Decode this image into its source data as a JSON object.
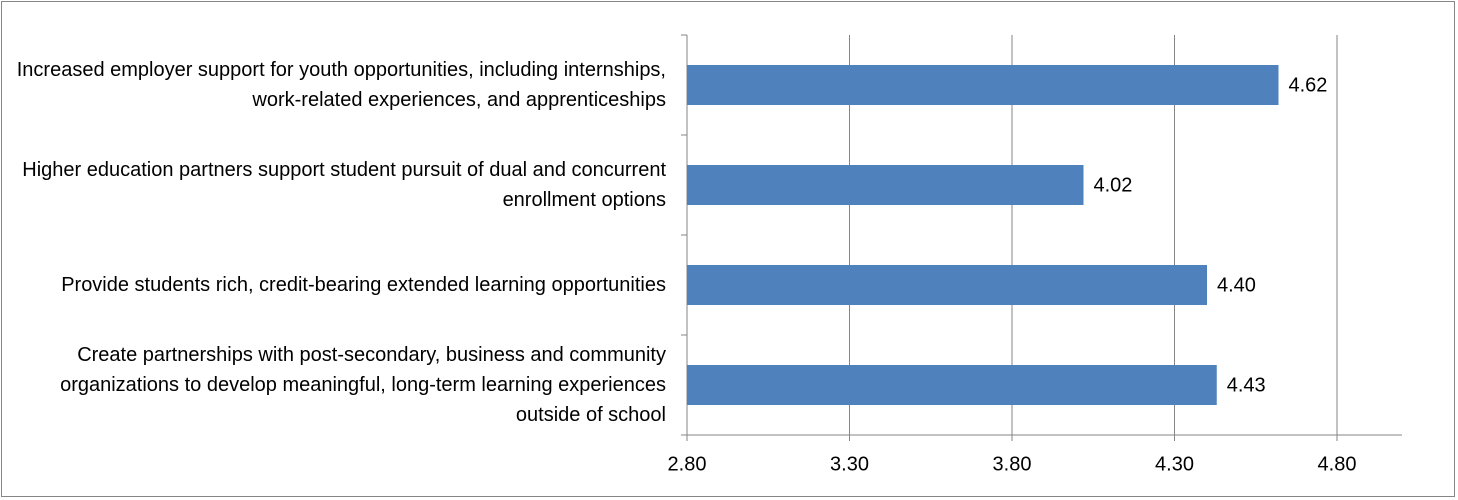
{
  "chart_data": {
    "type": "barh",
    "categories": [
      "Increased employer support for youth opportunities, including internships, work-related experiences, and apprenticeships",
      "Higher education partners support student pursuit of dual and concurrent enrollment options",
      "Provide students rich, credit-bearing extended learning opportunities",
      "Create partnerships with post-secondary, business and community organizations to develop meaningful, long-term learning experiences outside of school"
    ],
    "values": [
      4.62,
      4.02,
      4.4,
      4.43
    ],
    "value_labels": [
      "4.62",
      "4.02",
      "4.40",
      "4.43"
    ],
    "color": "#4f81bd",
    "xlim": [
      2.8,
      5.0
    ],
    "xticks": [
      {
        "value": 2.8,
        "label": "2.80"
      },
      {
        "value": 3.3,
        "label": "3.30"
      },
      {
        "value": 3.8,
        "label": "3.80"
      },
      {
        "value": 4.3,
        "label": "4.30"
      },
      {
        "value": 4.8,
        "label": "4.80"
      }
    ],
    "grid": true
  }
}
